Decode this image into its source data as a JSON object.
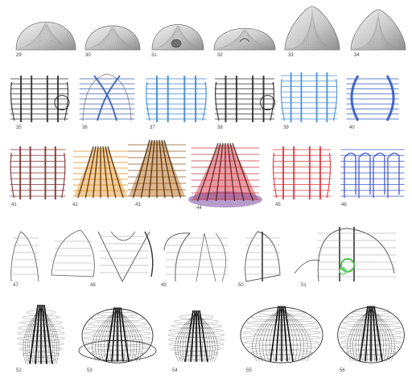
{
  "plate": {
    "rows": [
      {
        "row": 1,
        "style": "shell",
        "figures": [
          {
            "label": "29"
          },
          {
            "label": "30"
          },
          {
            "label": "31"
          },
          {
            "label": "32"
          },
          {
            "label": "33"
          },
          {
            "label": "34"
          }
        ]
      },
      {
        "row": 2,
        "style": "color-sketch",
        "figures": [
          {
            "label": "35",
            "color": "#2b2b2b"
          },
          {
            "label": "36",
            "color": "#3a5fb0"
          },
          {
            "label": "37",
            "color": "#3d86d1"
          },
          {
            "label": "38",
            "color": "#2a2a2a"
          },
          {
            "label": "39",
            "color": "#4a8fd8"
          },
          {
            "label": "40",
            "color": "#2f58c2"
          }
        ]
      },
      {
        "row": 3,
        "style": "color-sketch",
        "figures": [
          {
            "label": "41",
            "color": "#7a3030"
          },
          {
            "label": "42",
            "color": "#e08a1e"
          },
          {
            "label": "43",
            "color": "#8a5a1a"
          },
          {
            "label": "44",
            "color": "#c8323a"
          },
          {
            "label": "45",
            "color": "#d7363a"
          },
          {
            "label": "46",
            "color": "#3f56c9"
          }
        ]
      },
      {
        "row": 4,
        "style": "line",
        "figures": [
          {
            "label": "47"
          },
          {
            "label": "48"
          },
          {
            "label": "49"
          },
          {
            "label": "50"
          },
          {
            "label": "51"
          }
        ]
      },
      {
        "row": 5,
        "style": "dense",
        "figures": [
          {
            "label": "52"
          },
          {
            "label": "53"
          },
          {
            "label": "54"
          },
          {
            "label": "55"
          },
          {
            "label": "56"
          }
        ]
      }
    ]
  }
}
